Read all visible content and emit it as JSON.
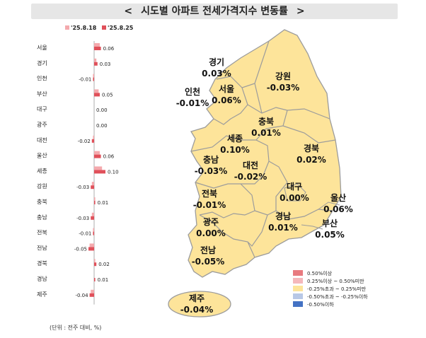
{
  "header": {
    "title": "시도별 아파트 전세가격지수 변동률",
    "left_chevron": "<",
    "right_chevron": ">"
  },
  "unit_note": "(단위 : 전주 대비, %)",
  "colors": {
    "prev_week": "#f4a9ad",
    "curr_week": "#e0505a",
    "map_fill": "#fde49a",
    "map_stroke": "#9c9c9c"
  },
  "chart_data": {
    "type": "bar",
    "orientation": "horizontal",
    "legend_position": "top-left",
    "series": [
      {
        "name": "'25.8.18",
        "color": "#f4a9ad",
        "values": [
          0.05,
          0.02,
          -0.01,
          0.04,
          0.0,
          0.0,
          -0.01,
          0.05,
          0.07,
          -0.02,
          0.01,
          -0.02,
          -0.01,
          -0.04,
          0.01,
          0.0,
          -0.03
        ]
      },
      {
        "name": "'25.8.25",
        "color": "#e0505a",
        "values": [
          0.06,
          0.03,
          -0.01,
          0.05,
          0.0,
          0.0,
          -0.02,
          0.06,
          0.1,
          -0.03,
          0.01,
          -0.03,
          -0.01,
          -0.05,
          0.02,
          0.01,
          -0.04
        ]
      }
    ],
    "categories": [
      "서울",
      "경기",
      "인천",
      "부산",
      "대구",
      "광주",
      "대전",
      "울산",
      "세종",
      "강원",
      "충북",
      "충남",
      "전북",
      "전남",
      "경북",
      "경남",
      "제주"
    ],
    "value_labels": [
      "0.06",
      "0.03",
      "-0.01",
      "0.05",
      "0.00",
      "0.00",
      "-0.02",
      "0.06",
      "0.10",
      "-0.03",
      "0.01",
      "-0.03",
      "-0.01",
      "-0.05",
      "0.02",
      "0.01",
      "-0.04"
    ]
  },
  "map_legend": [
    {
      "label": "0.50%이상",
      "color": "#e87a7f"
    },
    {
      "label": "0.25%이상 ~ 0.50%미만",
      "color": "#f5b8bb"
    },
    {
      "label": "-0.25%초과 ~ 0.25%미만",
      "color": "#fde49a"
    },
    {
      "label": "-0.50%초과 ~ -0.25%이하",
      "color": "#b8c8e6"
    },
    {
      "label": "-0.50%이하",
      "color": "#4472c4"
    }
  ],
  "map_regions": [
    {
      "name": "경기",
      "value": "0.03%"
    },
    {
      "name": "강원",
      "value": "-0.03%"
    },
    {
      "name": "인천",
      "value": "-0.01%"
    },
    {
      "name": "서울",
      "value": "0.06%"
    },
    {
      "name": "충북",
      "value": "0.01%"
    },
    {
      "name": "세종",
      "value": "0.10%"
    },
    {
      "name": "경북",
      "value": "0.02%"
    },
    {
      "name": "충남",
      "value": "-0.03%"
    },
    {
      "name": "대전",
      "value": "-0.02%"
    },
    {
      "name": "대구",
      "value": "0.00%"
    },
    {
      "name": "전북",
      "value": "-0.01%"
    },
    {
      "name": "울산",
      "value": "0.06%"
    },
    {
      "name": "광주",
      "value": "0.00%"
    },
    {
      "name": "경남",
      "value": "0.01%"
    },
    {
      "name": "부산",
      "value": "0.05%"
    },
    {
      "name": "전남",
      "value": "-0.05%"
    },
    {
      "name": "제주",
      "value": "-0.04%"
    }
  ]
}
